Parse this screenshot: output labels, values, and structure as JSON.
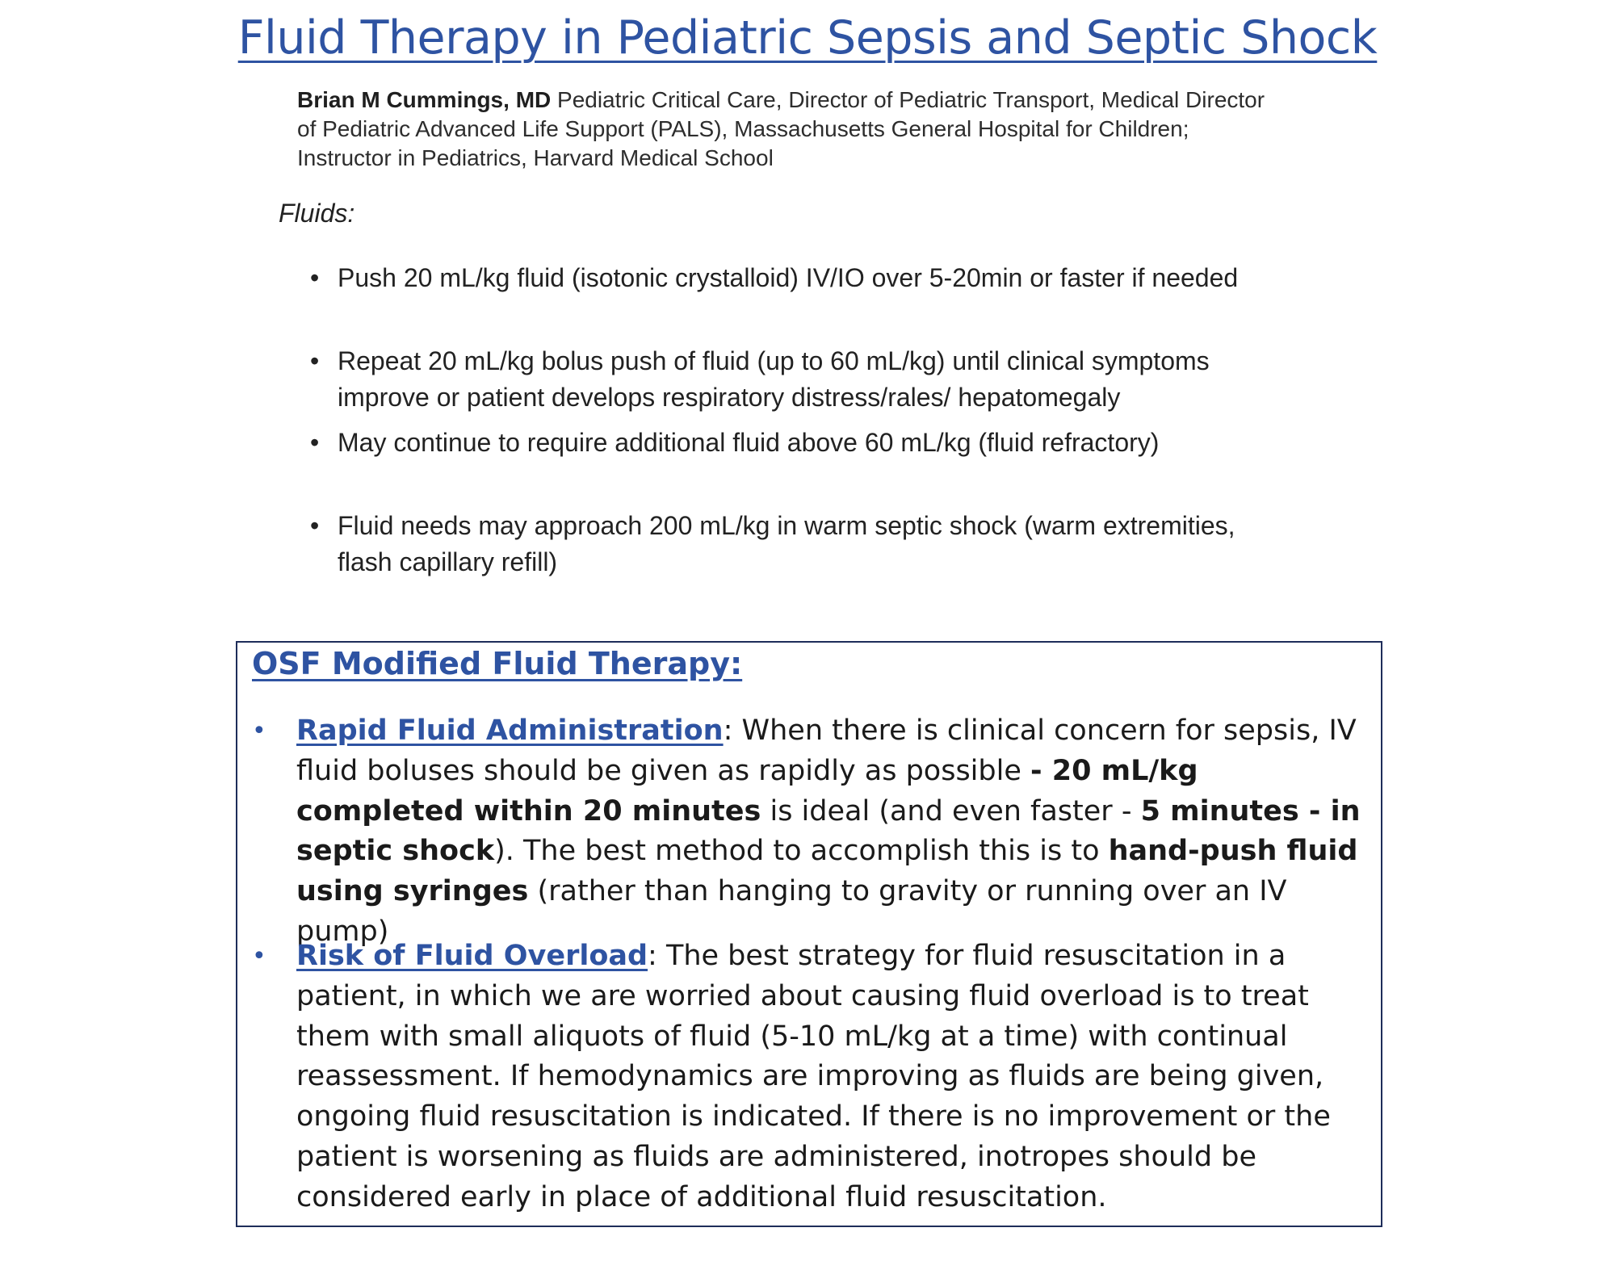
{
  "title": "Fluid Therapy in Pediatric Sepsis and Septic Shock",
  "author": {
    "name": "Brian M Cummings, MD",
    "line1_rest": " Pediatric Critical Care, Director of Pediatric Transport, Medical Director",
    "line2": "of Pediatric Advanced Life Support (PALS), Massachusetts General Hospital for Children;",
    "line3": "Instructor in Pediatrics, Harvard Medical School"
  },
  "fluids_label": "Fluids:",
  "bullet_char": "•",
  "fluids_bullets": [
    {
      "lines": [
        "Push 20 mL/kg fluid (isotonic crystalloid) IV/IO over 5-20min or faster if needed"
      ]
    },
    {
      "lines": [
        "Repeat 20 mL/kg bolus push of fluid (up to 60 mL/kg) until clinical symptoms",
        "improve or patient develops respiratory distress/rales/ hepatomegaly"
      ]
    },
    {
      "lines": [
        "May continue to require additional fluid above 60 mL/kg (fluid refractory)"
      ]
    },
    {
      "lines": [
        "Fluid needs may approach 200 mL/kg in warm septic shock (warm extremities,",
        "flash capillary refill)"
      ]
    }
  ],
  "osf": {
    "title": "OSF Modified  Fluid Therapy:",
    "item1": {
      "heading": "Rapid Fluid Administration",
      "t1": ": When there is clinical concern for sepsis, IV fluid boluses should be given as rapidly as possible ",
      "b1": "- 20 mL/kg completed within 20 minutes",
      "t2": " is ideal (and even faster - ",
      "b2": "5 minutes - in septic shock",
      "t3": "). The best method to accomplish this is to ",
      "b3": "hand-push fluid using syringes",
      "t4": " (rather than hanging to gravity or running over an IV pump)"
    },
    "item2": {
      "heading": "Risk of Fluid Overload",
      "t1": ": The best strategy for fluid resuscitation in a patient, in which we are worried about causing fluid overload is to treat them with small aliquots of fluid (5-10 mL/kg at a time) with continual reassessment. If hemodynamics are improving as fluids are being given, ongoing fluid resuscitation is indicated. If there is no improvement or the patient is worsening as fluids are administered, inotropes should be considered early in place of additional fluid resuscitation."
    }
  }
}
